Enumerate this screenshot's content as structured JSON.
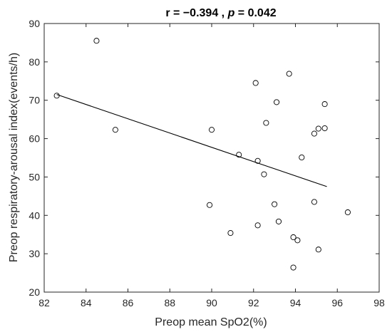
{
  "chart_data": {
    "type": "scatter",
    "title_parts": [
      "r = −0.394 ,  ",
      "p",
      " = 0.042"
    ],
    "xlabel": "Preop mean SpO2(%)",
    "ylabel": "Preop respiratory-arousal index(events/h)",
    "xlim": [
      82,
      98
    ],
    "ylim": [
      20,
      90
    ],
    "xticks": [
      82,
      84,
      86,
      88,
      90,
      92,
      94,
      96,
      98
    ],
    "yticks": [
      20,
      30,
      40,
      50,
      60,
      70,
      80,
      90
    ],
    "grid": false,
    "points": [
      {
        "x": 82.6,
        "y": 71.2
      },
      {
        "x": 84.5,
        "y": 85.5
      },
      {
        "x": 85.4,
        "y": 62.3
      },
      {
        "x": 89.9,
        "y": 42.7
      },
      {
        "x": 90.0,
        "y": 62.3
      },
      {
        "x": 90.9,
        "y": 35.4
      },
      {
        "x": 91.3,
        "y": 55.8
      },
      {
        "x": 92.1,
        "y": 74.5
      },
      {
        "x": 92.2,
        "y": 54.2
      },
      {
        "x": 92.2,
        "y": 37.4
      },
      {
        "x": 92.5,
        "y": 50.7
      },
      {
        "x": 92.6,
        "y": 64.1
      },
      {
        "x": 93.0,
        "y": 42.9
      },
      {
        "x": 93.1,
        "y": 69.5
      },
      {
        "x": 93.2,
        "y": 38.4
      },
      {
        "x": 93.7,
        "y": 76.9
      },
      {
        "x": 93.9,
        "y": 34.3
      },
      {
        "x": 93.9,
        "y": 26.4
      },
      {
        "x": 94.1,
        "y": 33.5
      },
      {
        "x": 94.3,
        "y": 55.1
      },
      {
        "x": 94.9,
        "y": 61.3
      },
      {
        "x": 94.9,
        "y": 43.5
      },
      {
        "x": 95.1,
        "y": 62.6
      },
      {
        "x": 95.1,
        "y": 31.1
      },
      {
        "x": 95.4,
        "y": 69.0
      },
      {
        "x": 95.4,
        "y": 62.7
      },
      {
        "x": 96.5,
        "y": 40.8
      }
    ],
    "fit_line": {
      "x": [
        82.6,
        95.5
      ],
      "y": [
        71.5,
        47.5
      ]
    },
    "marker": "open-circle",
    "colors": {
      "axis": "#262626",
      "marker": "#000000",
      "line": "#000000",
      "background": "#ffffff"
    }
  }
}
